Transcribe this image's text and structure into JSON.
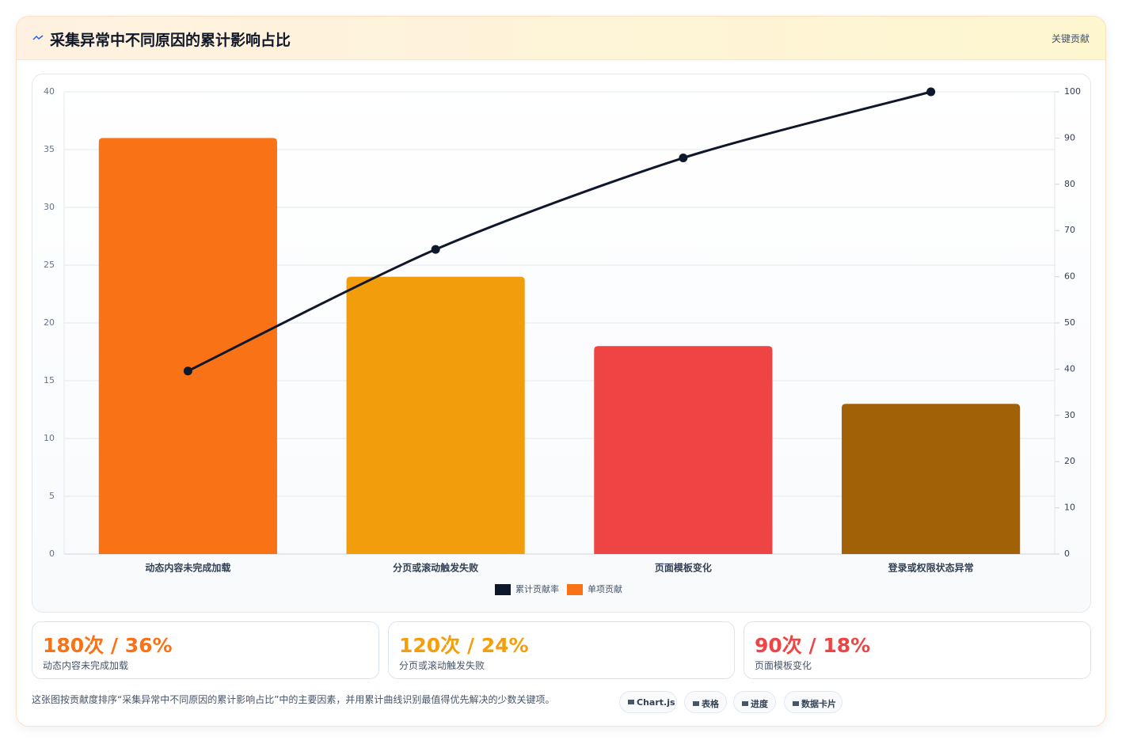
{
  "header": {
    "title": "采集异常中不同原因的累计影响占比",
    "badge": "关键贡献"
  },
  "chart_data": {
    "type": "bar",
    "categories": [
      "动态内容未完成加载",
      "分页或滚动触发失败",
      "页面模板变化",
      "登录或权限状态异常"
    ],
    "series": [
      {
        "name": "累计贡献率",
        "type": "line",
        "axis": "y2",
        "color": "#0f172a",
        "values": [
          39.6,
          65.9,
          85.7,
          100
        ]
      },
      {
        "name": "单项贡献",
        "color": "#f97316",
        "colors": [
          "#f97316",
          "#f29e0c",
          "#ef4444",
          "#a16207"
        ],
        "values": [
          36,
          24,
          18,
          13
        ]
      }
    ],
    "ylim": [
      0,
      40
    ],
    "yticks": [
      0,
      5,
      10,
      15,
      20,
      25,
      30,
      35,
      40
    ],
    "y2lim": [
      0,
      100
    ],
    "y2ticks": [
      0,
      10,
      20,
      30,
      40,
      50,
      60,
      70,
      80,
      90,
      100
    ],
    "grid": true,
    "legend": "bottom"
  },
  "cards": [
    {
      "value": "180次 / 36%",
      "label": "动态内容未完成加载",
      "color": "#f97316"
    },
    {
      "value": "120次 / 24%",
      "label": "分页或滚动触发失败",
      "color": "#f59e0b"
    },
    {
      "value": "90次 / 18%",
      "label": "页面模板变化",
      "color": "#ef4444"
    }
  ],
  "footer": {
    "text": "这张图按贡献度排序“采集异常中不同原因的累计影响占比”中的主要因素，并用累计曲线识别最值得优先解决的少数关键项。",
    "chips": [
      "Chart.js",
      "表格",
      "进度",
      "数据卡片"
    ]
  }
}
